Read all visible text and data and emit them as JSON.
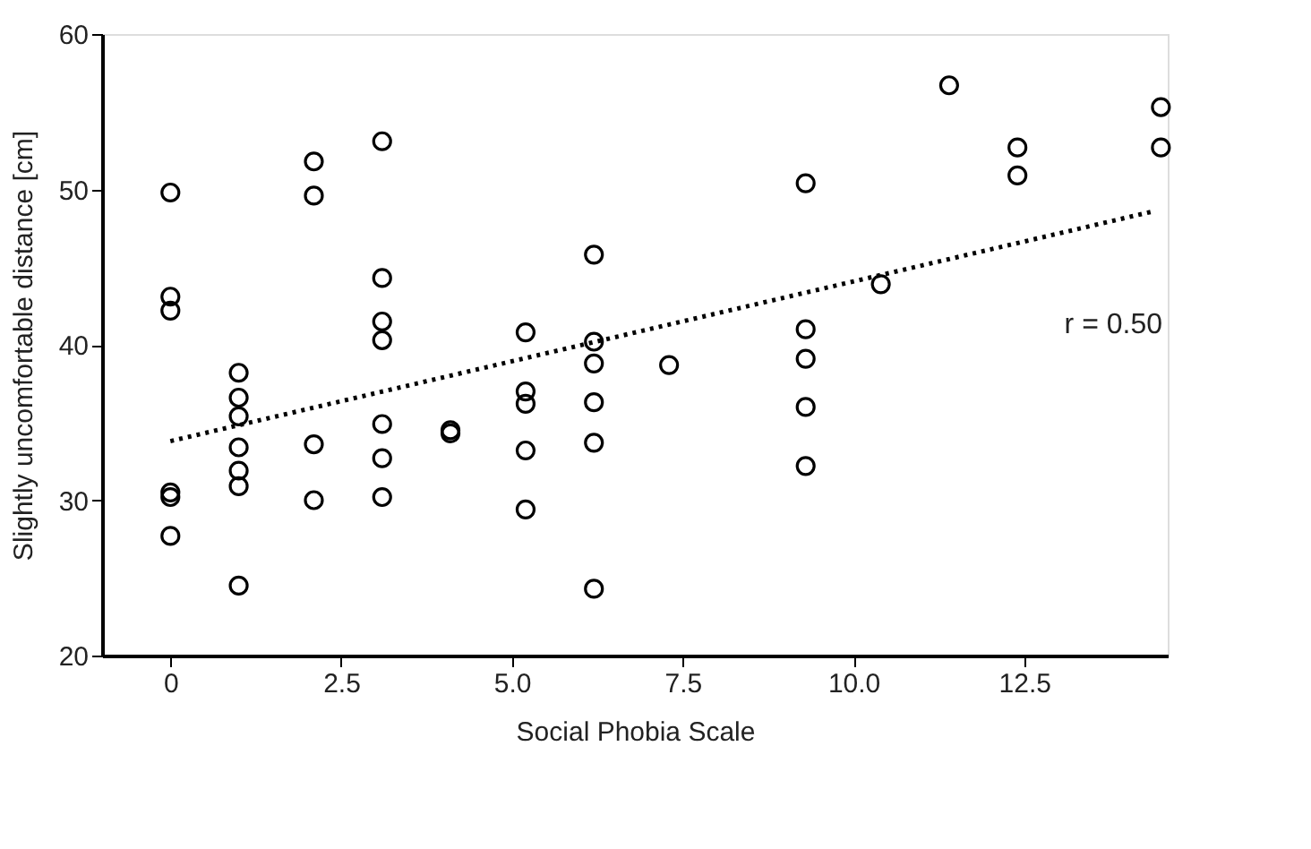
{
  "chart_data": {
    "type": "scatter",
    "xlabel": "Social Phobia Scale",
    "ylabel": "Slightly uncomfortable distance [cm]",
    "xlim": [
      -1,
      14.6
    ],
    "ylim": [
      20,
      60
    ],
    "xticks": [
      0,
      2.5,
      {
        "value": 5,
        "label": "5.0"
      },
      7.5,
      {
        "value": 10,
        "label": "10.0"
      },
      12.5
    ],
    "yticks": [
      20,
      30,
      40,
      50,
      60
    ],
    "grid": false,
    "series": [
      {
        "marker": "circle",
        "color": "#000000",
        "x": [
          0,
          0,
          0,
          0,
          0,
          0,
          1,
          1,
          1,
          1,
          1,
          1,
          1,
          2.1,
          2.1,
          2.1,
          2.1,
          3.1,
          3.1,
          3.1,
          3.1,
          3.1,
          3.1,
          3.1,
          4.1,
          4.1,
          5.2,
          5.2,
          5.2,
          5.2,
          5.2,
          6.2,
          6.2,
          6.2,
          6.2,
          6.2,
          6.2,
          7.3,
          9.3,
          9.3,
          9.3,
          9.3,
          9.3,
          10.4,
          11.4,
          12.4,
          12.4,
          14.5,
          14.5
        ],
        "values": [
          49.8,
          43.1,
          42.2,
          30.5,
          30.2,
          27.7,
          38.2,
          36.6,
          35.4,
          33.4,
          31.9,
          30.9,
          24.5,
          51.8,
          49.6,
          33.6,
          30.0,
          53.1,
          44.3,
          41.5,
          40.3,
          34.9,
          32.7,
          30.2,
          34.5,
          34.3,
          40.8,
          37.0,
          36.2,
          33.2,
          29.4,
          45.8,
          40.2,
          38.8,
          36.3,
          33.7,
          24.3,
          38.7,
          50.4,
          41.0,
          39.1,
          36.0,
          32.2,
          43.9,
          56.7,
          52.7,
          50.9,
          55.3,
          52.7
        ]
      },
      {
        "type": "line",
        "color": "#000000",
        "line_style": "dotted",
        "marker": "none",
        "x": [
          0,
          14.4
        ],
        "values": [
          33.8,
          48.6
        ]
      }
    ],
    "annotations": [
      "r = 0.50"
    ]
  }
}
